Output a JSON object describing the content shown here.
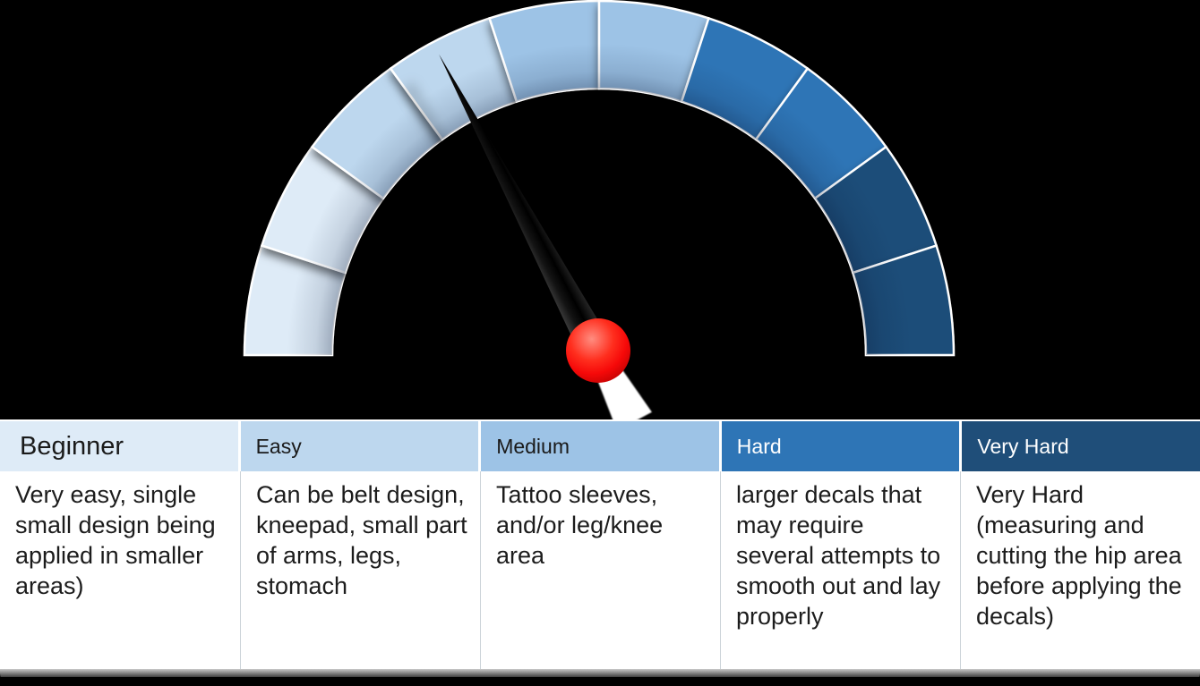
{
  "canvas": {
    "background": "#000000"
  },
  "chart_data": {
    "type": "gauge",
    "categories": [
      "Beginner",
      "Easy",
      "Medium",
      "Hard",
      "Very Hard"
    ],
    "level_colors": [
      "#DEEBF7",
      "#BDD7EE",
      "#9DC3E6",
      "#2E75B6",
      "#1F4E79"
    ],
    "segments": [
      {
        "level": "Beginner",
        "color": "#DEEBF7"
      },
      {
        "level": "Beginner",
        "color": "#DEEBF7"
      },
      {
        "level": "Easy",
        "color": "#BDD7EE"
      },
      {
        "level": "Easy",
        "color": "#BDD7EE"
      },
      {
        "level": "Medium",
        "color": "#9DC3E6"
      },
      {
        "level": "Medium",
        "color": "#9DC3E6"
      },
      {
        "level": "Hard",
        "color": "#2E75B6"
      },
      {
        "level": "Hard",
        "color": "#2E75B6"
      },
      {
        "level": "Very Hard",
        "color": "#1F4E79"
      },
      {
        "level": "Very Hard",
        "color": "#1F4E79"
      }
    ],
    "arc": {
      "start_deg": 180,
      "end_deg": 0,
      "segment_sweep_deg": 18
    },
    "needle": {
      "angle_deg": 118,
      "segment_index": 4,
      "level": "Easy",
      "color": "#111111",
      "hub_color": "#FF0000",
      "tail_color": "#FFFFFF"
    },
    "legend_position": "table-below"
  },
  "table": {
    "columns": [
      {
        "header": "Beginner",
        "header_bg": "#DEEBF7",
        "header_fg": "#1A1A1A",
        "description": "Very easy, single small design being applied in smaller areas)"
      },
      {
        "header": "Easy",
        "header_bg": "#BDD7EE",
        "header_fg": "#1A1A1A",
        "description": "Can be belt design, kneepad, small part of arms, legs, stomach"
      },
      {
        "header": "Medium",
        "header_bg": "#9DC3E6",
        "header_fg": "#1A1A1A",
        "description": "Tattoo sleeves, and/or leg/knee area"
      },
      {
        "header": "Hard",
        "header_bg": "#2E75B6",
        "header_fg": "#FFFFFF",
        "description": "larger decals that may require several attempts to smooth out and lay properly"
      },
      {
        "header": "Very Hard",
        "header_bg": "#1F4E79",
        "header_fg": "#FFFFFF",
        "description": "Very Hard (measuring and cutting the hip area before applying the decals)"
      }
    ]
  }
}
